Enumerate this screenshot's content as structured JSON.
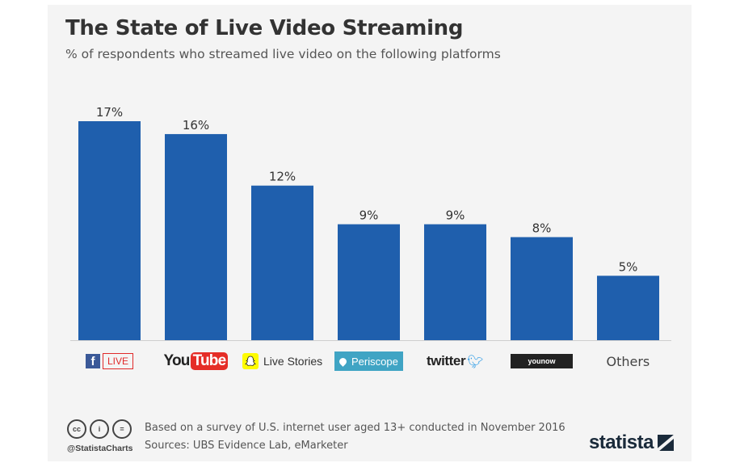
{
  "chart_data": {
    "type": "bar",
    "title": "The State of Live Video Streaming",
    "subtitle": "% of respondents who streamed live video on the following platforms",
    "categories": [
      "Facebook Live",
      "YouTube",
      "Snapchat Live Stories",
      "Periscope",
      "Twitter",
      "YouNow",
      "Others"
    ],
    "values": [
      17,
      16,
      12,
      9,
      9,
      8,
      5
    ],
    "value_labels": [
      "17%",
      "16%",
      "12%",
      "9%",
      "9%",
      "8%",
      "5%"
    ],
    "ylim": [
      0,
      17
    ],
    "grid": false,
    "legend": "none",
    "bar_color": "#1f5fad"
  },
  "logos": {
    "facebook": {
      "mark": "f",
      "badge": "LIVE"
    },
    "youtube": {
      "word": "You",
      "badge": "Tube"
    },
    "snapchat": {
      "icon": "ghost-icon",
      "label": "Live Stories"
    },
    "periscope": {
      "label": "Periscope"
    },
    "twitter": {
      "word": "twitter"
    },
    "younow": {
      "label": "younow"
    },
    "others": {
      "label": "Others"
    }
  },
  "footer": {
    "handle": "@StatistaCharts",
    "note": "Based on a survey of U.S. internet user aged 13+ conducted in November 2016",
    "sources": "Sources: UBS Evidence Lab, eMarketer",
    "brand": "statista",
    "license_icons": [
      "cc",
      "i",
      "="
    ]
  },
  "colors": {
    "background": "#f4f4f4",
    "bar": "#1f5fad",
    "facebook": "#3b5998",
    "youtube_red": "#e52d27",
    "snapchat_yellow": "#fffc00",
    "periscope_blue": "#40a4c4",
    "twitter_blue": "#2b9be6"
  }
}
